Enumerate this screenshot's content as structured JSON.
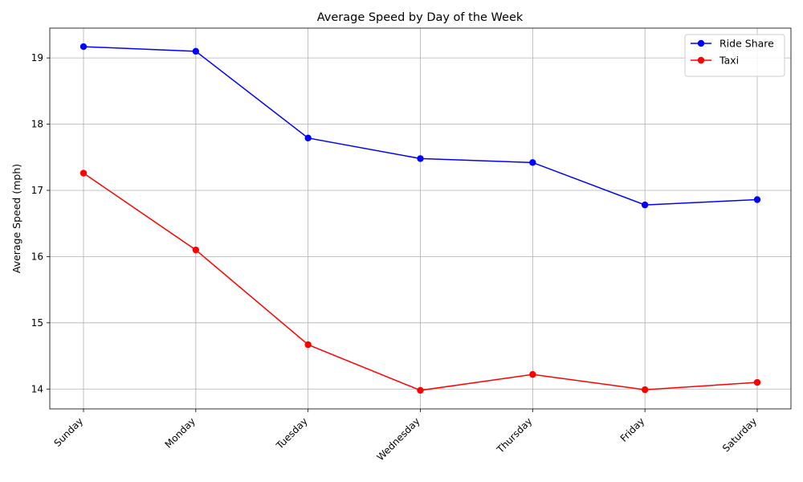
{
  "chart_data": {
    "type": "line",
    "title": "Average Speed by Day of the Week",
    "xlabel": "",
    "ylabel": "Average Speed (mph)",
    "categories": [
      "Sunday",
      "Monday",
      "Tuesday",
      "Wednesday",
      "Thursday",
      "Friday",
      "Saturday"
    ],
    "ylim": [
      13.7,
      19.45
    ],
    "yticks": [
      14,
      15,
      16,
      17,
      18,
      19
    ],
    "grid": true,
    "legend_position": "top-right",
    "series": [
      {
        "name": "Ride Share",
        "color": "#0000ff",
        "marker": "circle",
        "values": [
          19.17,
          19.1,
          17.79,
          17.48,
          17.42,
          16.78,
          16.86
        ]
      },
      {
        "name": "Taxi",
        "color": "#ff0000",
        "marker": "circle",
        "values": [
          17.26,
          16.1,
          14.67,
          13.98,
          14.22,
          13.99,
          14.1
        ]
      }
    ]
  }
}
